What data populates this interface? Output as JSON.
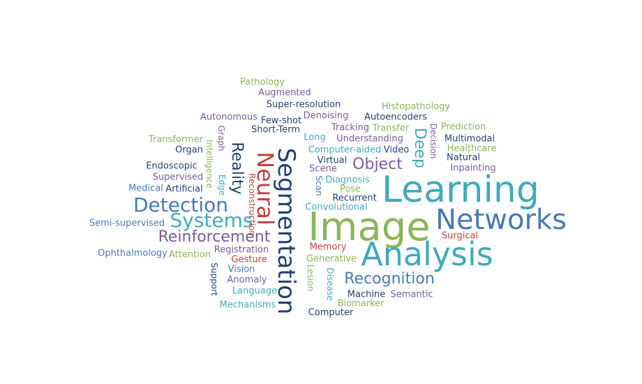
{
  "words": [
    {
      "text": "Pathology",
      "color": "c0"
    },
    {
      "text": "Augmented",
      "color": "c1"
    },
    {
      "text": "Super-resolution",
      "color": "c2"
    },
    {
      "text": "Histopathology",
      "color": "c0"
    },
    {
      "text": "Autonomous",
      "color": "c1"
    },
    {
      "text": "Few-shot",
      "color": "c2"
    },
    {
      "text": "Denoising",
      "color": "c1"
    },
    {
      "text": "Autoencoders",
      "color": "c2"
    },
    {
      "text": "Short-Term",
      "color": "c2"
    },
    {
      "text": "Tracking",
      "color": "c1"
    },
    {
      "text": "Transfer",
      "color": "c0"
    },
    {
      "text": "Prediction",
      "color": "c0"
    },
    {
      "text": "Long",
      "color": "c3"
    },
    {
      "text": "Understanding",
      "color": "c1"
    },
    {
      "text": "Multimodal",
      "color": "c2"
    },
    {
      "text": "Transformer",
      "color": "c0"
    },
    {
      "text": "Healthcare",
      "color": "c0"
    },
    {
      "text": "Organ",
      "color": "c2"
    },
    {
      "text": "Computer-aided",
      "color": "c3"
    },
    {
      "text": "Video",
      "color": "c2"
    },
    {
      "text": "Natural",
      "color": "c2"
    },
    {
      "text": "Virtual",
      "color": "c2"
    },
    {
      "text": "Inpainting",
      "color": "c1"
    },
    {
      "text": "Endoscopic",
      "color": "c2"
    },
    {
      "text": "Scene",
      "color": "c1"
    },
    {
      "text": "Object",
      "color": "c1"
    },
    {
      "text": "Supervised",
      "color": "c1"
    },
    {
      "text": "Diagnosis",
      "color": "c3"
    },
    {
      "text": "Medical",
      "color": "c4"
    },
    {
      "text": "Artificial",
      "color": "c2"
    },
    {
      "text": "Pose",
      "color": "c0"
    },
    {
      "text": "Recurrent",
      "color": "c2"
    },
    {
      "text": "Learning",
      "color": "c3"
    },
    {
      "text": "Detection",
      "color": "c4"
    },
    {
      "text": "Convolutional",
      "color": "c3"
    },
    {
      "text": "Networks",
      "color": "c4"
    },
    {
      "text": "Systems",
      "color": "c3"
    },
    {
      "text": "Image",
      "color": "c0"
    },
    {
      "text": "Semi-supervised",
      "color": "c4"
    },
    {
      "text": "Surgical",
      "color": "c5"
    },
    {
      "text": "Reinforcement",
      "color": "c1"
    },
    {
      "text": "Memory",
      "color": "c5"
    },
    {
      "text": "Analysis",
      "color": "c3"
    },
    {
      "text": "Ophthalmology",
      "color": "c4"
    },
    {
      "text": "Registration",
      "color": "c1"
    },
    {
      "text": "Attention",
      "color": "c0"
    },
    {
      "text": "Generative",
      "color": "c0"
    },
    {
      "text": "Gesture",
      "color": "c5"
    },
    {
      "text": "Vision",
      "color": "c4"
    },
    {
      "text": "Recognition",
      "color": "c4"
    },
    {
      "text": "Anomaly",
      "color": "c1"
    },
    {
      "text": "Language",
      "color": "c3"
    },
    {
      "text": "Machine",
      "color": "c2"
    },
    {
      "text": "Semantic",
      "color": "c1"
    },
    {
      "text": "Mechanisms",
      "color": "c3"
    },
    {
      "text": "Biomarker",
      "color": "c0"
    },
    {
      "text": "Computer",
      "color": "c2"
    },
    {
      "text": "Graph",
      "color": "c1"
    },
    {
      "text": "Intelligence",
      "color": "c0"
    },
    {
      "text": "Edge",
      "color": "c3"
    },
    {
      "text": "Reality",
      "color": "c2"
    },
    {
      "text": "Reconstruction",
      "color": "c5"
    },
    {
      "text": "Neural",
      "color": "c5"
    },
    {
      "text": "Segmentation",
      "color": "c2"
    },
    {
      "text": "Scan",
      "color": "c4"
    },
    {
      "text": "Deep",
      "color": "c3"
    },
    {
      "text": "Decision",
      "color": "c1"
    },
    {
      "text": "Support",
      "color": "c2"
    },
    {
      "text": "Lesion",
      "color": "c0"
    },
    {
      "text": "Disease",
      "color": "c3"
    }
  ]
}
